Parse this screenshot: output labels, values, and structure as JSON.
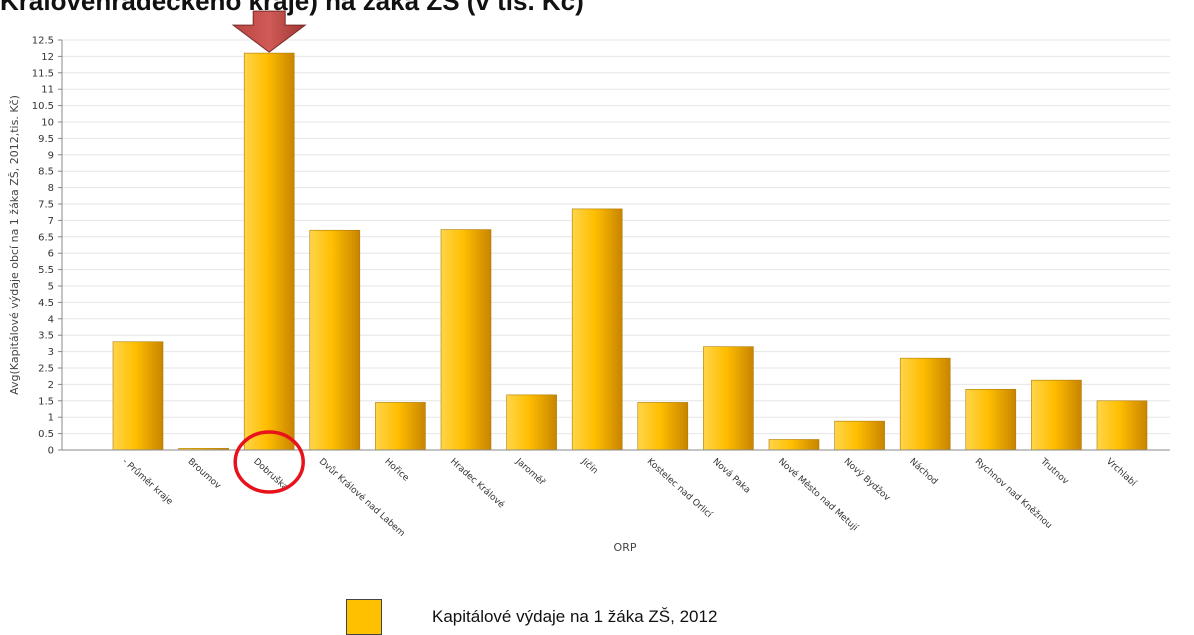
{
  "chart_data": {
    "type": "bar",
    "title": "Královehradeckého kraje) na žáka ZŠ (v tis. Kč)",
    "xlabel": "ORP",
    "ylabel": "Avg(Kapitálové výdaje obcí na 1 žáka ZŠ, 2012,tis. Kč)",
    "ylim": [
      0,
      12.5
    ],
    "yticks": [
      "0",
      "0.5",
      "1",
      "1.5",
      "2",
      "2.5",
      "3",
      "3.5",
      "4",
      "4.5",
      "5",
      "5.5",
      "6",
      "6.5",
      "7",
      "7.5",
      "8",
      "8.5",
      "9",
      "9.5",
      "10",
      "10.5",
      "11",
      "11.5",
      "12",
      "12.5"
    ],
    "grid": true,
    "legend_position": "bottom",
    "categories": [
      "- Průměr kraje",
      "Broumov",
      "Dobruška",
      "Dvůr Králové nad Labem",
      "Hořice",
      "Hradec Králové",
      "Jaroměř",
      "Jičín",
      "Kostelec nad Orlicí",
      "Nová Paka",
      "Nové Město nad Metují",
      "Nový Bydžov",
      "Náchod",
      "Rychnov nad Kněžnou",
      "Trutnov",
      "Vrchlabí"
    ],
    "series": [
      {
        "name": "Kapitálové výdaje na 1 žáka ZŠ, 2012",
        "color": "#ffc000",
        "values": [
          3.3,
          0.05,
          12.1,
          6.7,
          1.45,
          6.72,
          1.68,
          7.35,
          1.45,
          3.15,
          0.32,
          0.88,
          2.8,
          1.85,
          2.13,
          1.5
        ]
      }
    ],
    "annotations": {
      "highlight_category": "Dobruška",
      "arrow_color": "#c0504d",
      "circle_color": "#e8121b"
    }
  }
}
